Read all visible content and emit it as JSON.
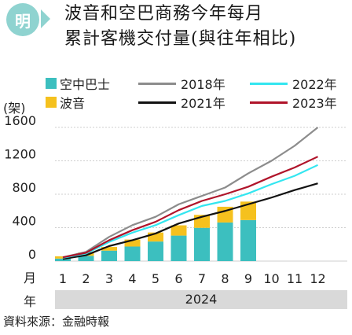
{
  "header": {
    "logo_char": "明",
    "title_line1": "波音和空巴商務今年每月",
    "title_line2": "累計客機交付量(與往年相比)"
  },
  "legend": {
    "airbus": "空中巴士",
    "boeing": "波音",
    "l2018": "2018年",
    "l2021": "2021年",
    "l2022": "2022年",
    "l2023": "2023年"
  },
  "axis": {
    "unit": "(架)",
    "month_label": "月",
    "year_label": "年",
    "year_value": "2024"
  },
  "source": "資料來源：金融時報",
  "colors": {
    "airbus": "#3cbfbf",
    "boeing": "#f5c11e",
    "l2018": "#8c8c8c",
    "l2021": "#111111",
    "l2022": "#33e6f0",
    "l2023": "#b0142a"
  },
  "chart_data": {
    "type": "bar+line",
    "x": [
      1,
      2,
      3,
      4,
      5,
      6,
      7,
      8,
      9,
      10,
      11,
      12
    ],
    "ylim": [
      0,
      1600
    ],
    "yticks": [
      0,
      400,
      800,
      1200,
      1600
    ],
    "bars": [
      {
        "name": "空中巴士",
        "values": [
          30,
          63,
          125,
          174,
          234,
          305,
          398,
          462,
          491
        ]
      },
      {
        "name": "波音",
        "values": [
          27,
          40,
          44,
          84,
          108,
          123,
          155,
          188,
          221
        ]
      }
    ],
    "lines": [
      {
        "name": "2018年",
        "values": [
          45,
          110,
          290,
          430,
          530,
          680,
          780,
          880,
          1050,
          1200,
          1380,
          1600
        ]
      },
      {
        "name": "2021年",
        "values": [
          25,
          70,
          180,
          250,
          330,
          450,
          530,
          600,
          680,
          760,
          850,
          930
        ]
      },
      {
        "name": "2022年",
        "values": [
          40,
          90,
          230,
          340,
          430,
          550,
          660,
          720,
          810,
          920,
          1020,
          1150
        ]
      },
      {
        "name": "2023年",
        "values": [
          45,
          100,
          250,
          370,
          470,
          610,
          720,
          800,
          890,
          1010,
          1120,
          1250
        ]
      }
    ]
  }
}
